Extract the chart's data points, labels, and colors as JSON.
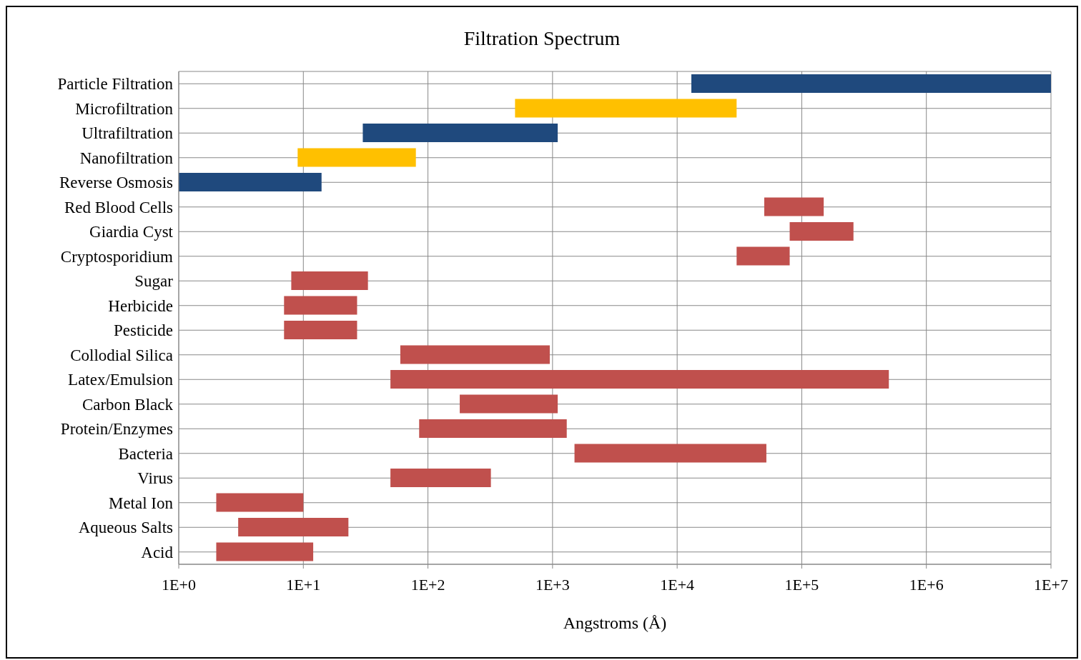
{
  "chart_data": {
    "type": "bar",
    "title": "Filtration Spectrum",
    "xlabel": "Angstroms (Å)",
    "orientation": "horizontal",
    "log": "x",
    "grid": true,
    "legend": false,
    "categories": [
      "Particle Filtration",
      "Microfiltration",
      "Ultrafiltration",
      "Nanofiltration",
      "Reverse Osmosis",
      "Red Blood Cells",
      "Giardia Cyst",
      "Cryptosporidium",
      "Sugar",
      "Herbicide",
      "Pesticide",
      "Collodial Silica",
      "Latex/Emulsion",
      "Carbon Black",
      "Protein/Enzymes",
      "Bacteria",
      "Virus",
      "Metal Ion",
      "Aqueous Salts",
      "Acid"
    ],
    "base": [
      13000,
      500,
      30,
      9,
      1,
      50000,
      80000,
      30000,
      8,
      7,
      7,
      60,
      50,
      180,
      85,
      1500,
      50,
      2,
      3,
      2
    ],
    "values": [
      9987000,
      29500,
      1070,
      71,
      13,
      100000,
      180000,
      50000,
      25,
      20,
      20,
      890,
      499950,
      920,
      1215,
      50500,
      270,
      8,
      20,
      10
    ],
    "colors": [
      "#1f497d",
      "#ffc000",
      "#1f497d",
      "#ffc000",
      "#1f497d",
      "#c0504d",
      "#c0504d",
      "#c0504d",
      "#c0504d",
      "#c0504d",
      "#c0504d",
      "#c0504d",
      "#c0504d",
      "#c0504d",
      "#c0504d",
      "#c0504d",
      "#c0504d",
      "#c0504d",
      "#c0504d",
      "#c0504d"
    ],
    "xlim": [
      1,
      10000000
    ],
    "xticks": [
      {
        "value": 1,
        "label": "1E+0"
      },
      {
        "value": 10,
        "label": "1E+1"
      },
      {
        "value": 100,
        "label": "1E+2"
      },
      {
        "value": 1000,
        "label": "1E+3"
      },
      {
        "value": 10000,
        "label": "1E+4"
      },
      {
        "value": 100000,
        "label": "1E+5"
      },
      {
        "value": 1000000,
        "label": "1E+6"
      },
      {
        "value": 10000000,
        "label": "1E+7"
      }
    ]
  }
}
